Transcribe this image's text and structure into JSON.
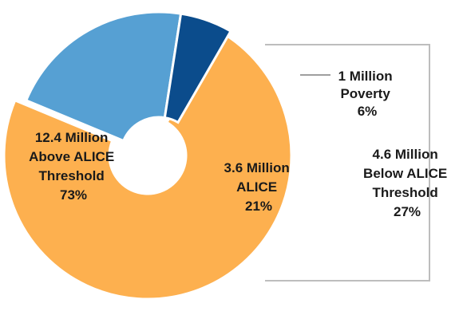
{
  "chart_data": {
    "type": "pie",
    "variant": "donut-with-exploded-bracket",
    "slices": [
      {
        "lines": [
          "12.4 Million",
          "Above ALICE",
          "Threshold",
          "73%"
        ],
        "value_millions": 12.4,
        "percent": 73,
        "color": "#FDB04F"
      },
      {
        "lines": [
          "3.6 Million",
          "ALICE",
          "21%"
        ],
        "value_millions": 3.6,
        "percent": 21,
        "color": "#56A0D3"
      },
      {
        "lines": [
          "1 Million",
          "Poverty",
          "6%"
        ],
        "value_millions": 1.0,
        "percent": 6,
        "color": "#0B4C8C"
      }
    ],
    "bracket": {
      "lines": [
        "4.6 Million",
        "Below ALICE",
        "Threshold",
        "27%"
      ],
      "value_millions": 4.6,
      "percent": 27,
      "color": "#BDBDBD"
    }
  }
}
